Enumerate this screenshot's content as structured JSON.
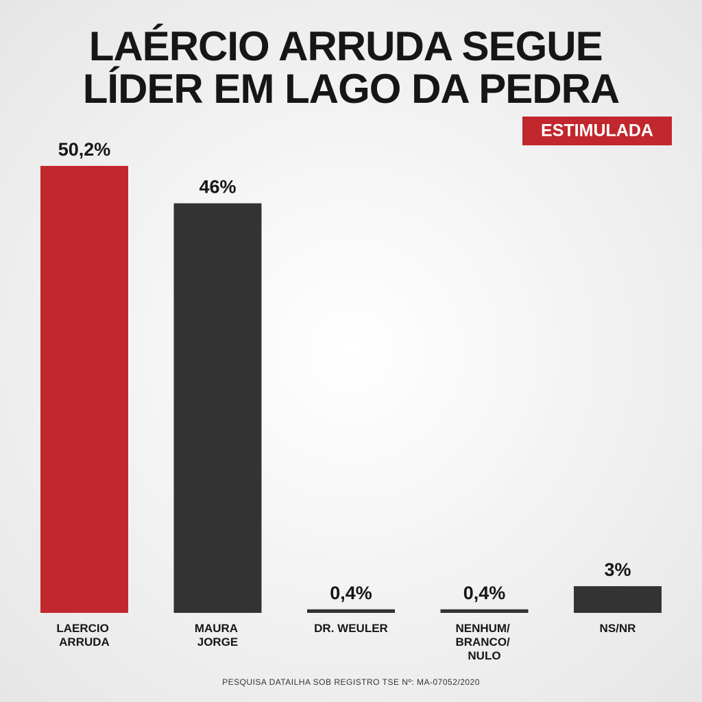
{
  "chart_data": {
    "type": "bar",
    "title": "LAÉRCIO ARRUDA SEGUE\nLÍDER EM LAGO DA PEDRA",
    "subtitle": "ESTIMULADA",
    "categories": [
      "LAERCIO\nARRUDA",
      "MAURA\nJORGE",
      "DR. WEULER",
      "NENHUM/\nBRANCO/\nNULO",
      "NS/NR"
    ],
    "values": [
      50.2,
      46,
      0.4,
      0.4,
      3
    ],
    "value_labels": [
      "50,2%",
      "46%",
      "0,4%",
      "0,4%",
      "3%"
    ],
    "colors": [
      "#c1272d",
      "#333333",
      "#333333",
      "#333333",
      "#333333"
    ],
    "accent_color": "#c1272d",
    "note": "PESQUISA DATAILHA SOB REGISTRO TSE Nº: MA-07052/2020"
  }
}
